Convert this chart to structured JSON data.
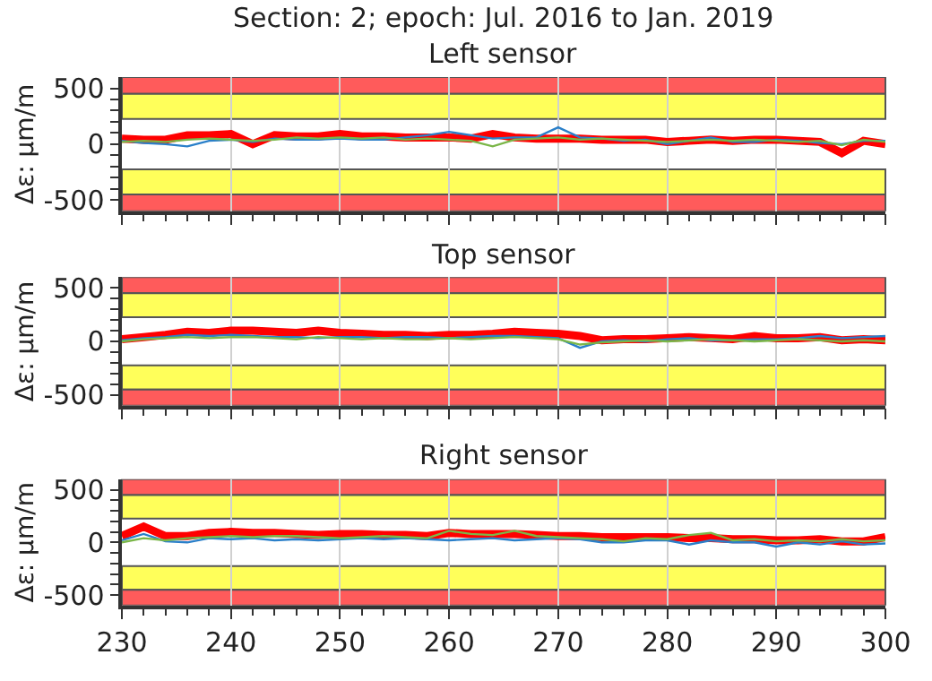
{
  "chart_data": [
    {
      "type": "line",
      "title": "Section: 2; epoch: Jul. 2016 to Jan. 2019",
      "subtitle": "Left sensor",
      "ylabel": "Δε: µm/m",
      "x": [
        230,
        232,
        234,
        236,
        238,
        240,
        242,
        244,
        246,
        248,
        250,
        252,
        254,
        256,
        258,
        260,
        262,
        264,
        266,
        268,
        270,
        272,
        274,
        276,
        278,
        280,
        282,
        284,
        286,
        288,
        290,
        292,
        294,
        296,
        298,
        300
      ],
      "series": [
        {
          "color": "#2a7fc9",
          "values": [
            30,
            10,
            0,
            -20,
            30,
            40,
            20,
            50,
            40,
            40,
            50,
            40,
            40,
            60,
            80,
            110,
            80,
            50,
            60,
            60,
            150,
            60,
            50,
            30,
            40,
            0,
            30,
            60,
            20,
            20,
            40,
            30,
            10,
            0,
            30,
            30
          ]
        },
        {
          "color": "#7ab648",
          "values": [
            20,
            30,
            20,
            40,
            50,
            40,
            30,
            40,
            60,
            50,
            60,
            50,
            60,
            40,
            50,
            40,
            30,
            -20,
            40,
            50,
            60,
            40,
            50,
            40,
            30,
            20,
            30,
            40,
            30,
            40,
            30,
            20,
            30,
            -10,
            40,
            20
          ]
        },
        {
          "color": "#ff0000",
          "values": [
            50,
            40,
            40,
            80,
            80,
            90,
            0,
            80,
            70,
            70,
            90,
            70,
            70,
            60,
            60,
            60,
            50,
            90,
            60,
            50,
            50,
            50,
            40,
            40,
            40,
            20,
            30,
            40,
            30,
            40,
            40,
            30,
            20,
            -80,
            30,
            0
          ]
        }
      ],
      "xlim": [
        230,
        300
      ],
      "xticks": [
        230,
        240,
        250,
        260,
        270,
        280,
        290,
        300
      ],
      "ylim": [
        -600,
        600
      ],
      "yticks": [
        -500,
        {
          "value": -400,
          "label": null
        },
        {
          "value": -300,
          "label": null
        },
        {
          "value": -200,
          "label": null
        },
        {
          "value": -100,
          "label": null
        },
        0,
        {
          "value": 100,
          "label": null
        },
        {
          "value": 200,
          "label": null
        },
        {
          "value": 300,
          "label": null
        },
        {
          "value": 400,
          "label": null
        },
        500
      ],
      "bands": [
        {
          "axis": "y",
          "from": 450,
          "to": 600,
          "color": "#ff5b5b"
        },
        {
          "axis": "y",
          "from": 225,
          "to": 450,
          "color": "#ffff5a"
        },
        {
          "axis": "y",
          "from": -450,
          "to": -225,
          "color": "#ffff5a"
        },
        {
          "axis": "y",
          "from": -600,
          "to": -450,
          "color": "#ff5b5b"
        }
      ],
      "grid": "x",
      "tick_labels": "y"
    },
    {
      "type": "line",
      "subtitle": "Top sensor",
      "ylabel": "Δε: µm/m",
      "x": [
        230,
        232,
        234,
        236,
        238,
        240,
        242,
        244,
        246,
        248,
        250,
        252,
        254,
        256,
        258,
        260,
        262,
        264,
        266,
        268,
        270,
        272,
        274,
        276,
        278,
        280,
        282,
        284,
        286,
        288,
        290,
        292,
        294,
        296,
        298,
        300
      ],
      "series": [
        {
          "color": "#2a7fc9",
          "values": [
            10,
            30,
            40,
            60,
            50,
            60,
            50,
            40,
            40,
            30,
            40,
            40,
            30,
            40,
            40,
            30,
            40,
            50,
            50,
            40,
            30,
            -60,
            0,
            10,
            0,
            20,
            30,
            10,
            10,
            20,
            20,
            30,
            50,
            30,
            40,
            50
          ]
        },
        {
          "color": "#7ab648",
          "values": [
            0,
            20,
            30,
            40,
            30,
            40,
            40,
            30,
            20,
            40,
            30,
            20,
            30,
            20,
            20,
            30,
            20,
            30,
            40,
            30,
            20,
            -30,
            -10,
            0,
            10,
            0,
            10,
            20,
            10,
            0,
            10,
            20,
            10,
            0,
            10,
            0
          ]
        },
        {
          "color": "#ff0000",
          "values": [
            20,
            40,
            60,
            90,
            80,
            100,
            100,
            90,
            80,
            100,
            80,
            70,
            60,
            60,
            50,
            60,
            60,
            70,
            90,
            80,
            70,
            50,
            10,
            20,
            20,
            30,
            40,
            30,
            20,
            50,
            30,
            30,
            40,
            10,
            20,
            10
          ]
        }
      ],
      "xlim": [
        230,
        300
      ],
      "xticks": [
        230,
        240,
        250,
        260,
        270,
        280,
        290,
        300
      ],
      "ylim": [
        -600,
        600
      ],
      "yticks": [
        -500,
        {
          "value": -400,
          "label": null
        },
        {
          "value": -300,
          "label": null
        },
        {
          "value": -200,
          "label": null
        },
        {
          "value": -100,
          "label": null
        },
        0,
        {
          "value": 100,
          "label": null
        },
        {
          "value": 200,
          "label": null
        },
        {
          "value": 300,
          "label": null
        },
        {
          "value": 400,
          "label": null
        },
        500
      ],
      "bands": [
        {
          "axis": "y",
          "from": 450,
          "to": 600,
          "color": "#ff5b5b"
        },
        {
          "axis": "y",
          "from": 225,
          "to": 450,
          "color": "#ffff5a"
        },
        {
          "axis": "y",
          "from": -450,
          "to": -225,
          "color": "#ffff5a"
        },
        {
          "axis": "y",
          "from": -600,
          "to": -450,
          "color": "#ff5b5b"
        }
      ],
      "grid": "x",
      "tick_labels": "y"
    },
    {
      "type": "line",
      "subtitle": "Right sensor",
      "ylabel": "Δε: µm/m",
      "x": [
        230,
        232,
        234,
        236,
        238,
        240,
        242,
        244,
        246,
        248,
        250,
        252,
        254,
        256,
        258,
        260,
        262,
        264,
        266,
        268,
        270,
        272,
        274,
        276,
        278,
        280,
        282,
        284,
        286,
        288,
        290,
        292,
        294,
        296,
        298,
        300
      ],
      "series": [
        {
          "color": "#2a7fc9",
          "values": [
            20,
            80,
            10,
            0,
            40,
            30,
            40,
            20,
            30,
            20,
            30,
            40,
            30,
            40,
            30,
            20,
            30,
            40,
            20,
            30,
            40,
            30,
            0,
            0,
            20,
            20,
            -20,
            20,
            0,
            0,
            -40,
            0,
            -20,
            10,
            -20,
            -10
          ]
        },
        {
          "color": "#7ab648",
          "values": [
            0,
            40,
            20,
            40,
            50,
            60,
            50,
            60,
            60,
            50,
            40,
            50,
            60,
            50,
            40,
            110,
            80,
            70,
            110,
            60,
            50,
            40,
            30,
            10,
            40,
            30,
            70,
            90,
            20,
            30,
            10,
            20,
            10,
            30,
            10,
            20
          ]
        },
        {
          "color": "#ff0000",
          "values": [
            60,
            150,
            60,
            60,
            90,
            100,
            90,
            90,
            80,
            70,
            80,
            80,
            70,
            70,
            60,
            90,
            80,
            80,
            80,
            70,
            60,
            60,
            50,
            50,
            50,
            50,
            40,
            40,
            30,
            30,
            20,
            20,
            30,
            10,
            10,
            50
          ]
        }
      ],
      "xlim": [
        230,
        300
      ],
      "xticks": [
        230,
        240,
        250,
        260,
        270,
        280,
        290,
        300
      ],
      "ylim": [
        -600,
        600
      ],
      "yticks": [
        -500,
        {
          "value": -400,
          "label": null
        },
        {
          "value": -300,
          "label": null
        },
        {
          "value": -200,
          "label": null
        },
        {
          "value": -100,
          "label": null
        },
        0,
        {
          "value": 100,
          "label": null
        },
        {
          "value": 200,
          "label": null
        },
        {
          "value": 300,
          "label": null
        },
        {
          "value": 400,
          "label": null
        },
        500
      ],
      "bands": [
        {
          "axis": "y",
          "from": 450,
          "to": 600,
          "color": "#ff5b5b"
        },
        {
          "axis": "y",
          "from": 225,
          "to": 450,
          "color": "#ffff5a"
        },
        {
          "axis": "y",
          "from": -450,
          "to": -225,
          "color": "#ffff5a"
        },
        {
          "axis": "y",
          "from": -600,
          "to": -450,
          "color": "#ff5b5b"
        }
      ],
      "grid": "x"
    }
  ]
}
